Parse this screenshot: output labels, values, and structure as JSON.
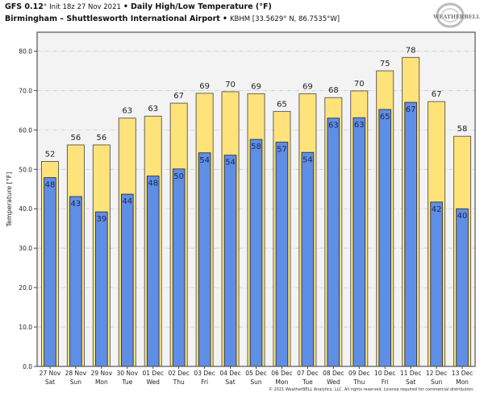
{
  "header": {
    "model": "GFS 0.12",
    "model_deg": "°",
    "init": "Init 18z 27 Nov 2021",
    "bullet": "•",
    "product": "Daily High/Low Temperature (°F)",
    "location": "Birmingham – Shuttlesworth International Airport",
    "station": "KBHM [33.5629° N, 86.7535°W]"
  },
  "logo": {
    "text": "WEATHERBELL",
    "sub": "ANALYTICS LLC"
  },
  "copyright": "© 2021 WeatherBELL Analytics, LLC. All rights reserved. License required for commercial distribution.",
  "colors": {
    "high": "#fde37a",
    "low": "#5f8ee6",
    "plot_bg": "#f3f3f3",
    "grid": "#cccccc",
    "outline": "#555555"
  },
  "chart_data": {
    "type": "bar",
    "title": "Daily High/Low Temperature (°F)",
    "xlabel": "",
    "ylabel": "Temperature [°F]",
    "ylim": [
      0,
      84.8
    ],
    "yticks": [
      0,
      10,
      20,
      30,
      40,
      50,
      60,
      70,
      80
    ],
    "ytick_labels": [
      "0.0",
      "10.0",
      "20.0",
      "30.0",
      "40.0",
      "50.0",
      "60.0",
      "70.0",
      "80.0"
    ],
    "grid": true,
    "categories": [
      {
        "date": "27 Nov",
        "day": "Sat"
      },
      {
        "date": "28 Nov",
        "day": "Sun"
      },
      {
        "date": "29 Nov",
        "day": "Mon"
      },
      {
        "date": "30 Nov",
        "day": "Tue"
      },
      {
        "date": "01 Dec",
        "day": "Wed"
      },
      {
        "date": "02 Dec",
        "day": "Thu"
      },
      {
        "date": "03 Dec",
        "day": "Fri"
      },
      {
        "date": "04 Dec",
        "day": "Sat"
      },
      {
        "date": "05 Dec",
        "day": "Sun"
      },
      {
        "date": "06 Dec",
        "day": "Mon"
      },
      {
        "date": "07 Dec",
        "day": "Tue"
      },
      {
        "date": "08 Dec",
        "day": "Wed"
      },
      {
        "date": "09 Dec",
        "day": "Thu"
      },
      {
        "date": "10 Dec",
        "day": "Fri"
      },
      {
        "date": "11 Dec",
        "day": "Sat"
      },
      {
        "date": "12 Dec",
        "day": "Sun"
      },
      {
        "date": "13 Dec",
        "day": "Mon"
      }
    ],
    "series": [
      {
        "name": "High",
        "values": [
          52.0,
          56.2,
          56.2,
          63.0,
          63.5,
          66.8,
          69.3,
          69.7,
          69.2,
          64.7,
          69.2,
          68.2,
          69.9,
          75.0,
          78.4,
          67.2,
          58.4
        ],
        "labels": [
          "52",
          "56",
          "56",
          "63",
          "63",
          "67",
          "69",
          "70",
          "69",
          "65",
          "69",
          "68",
          "70",
          "75",
          "78",
          "67",
          "58"
        ]
      },
      {
        "name": "Low",
        "values": [
          47.9,
          43.1,
          39.2,
          43.7,
          48.3,
          50.1,
          54.2,
          53.6,
          57.6,
          56.9,
          54.3,
          63.0,
          63.1,
          65.2,
          67.0,
          41.7,
          40.0
        ],
        "labels": [
          "48",
          "43",
          "39",
          "44",
          "48",
          "50",
          "54",
          "54",
          "58",
          "57",
          "54",
          "63",
          "63",
          "65",
          "67",
          "42",
          "40"
        ]
      }
    ]
  }
}
